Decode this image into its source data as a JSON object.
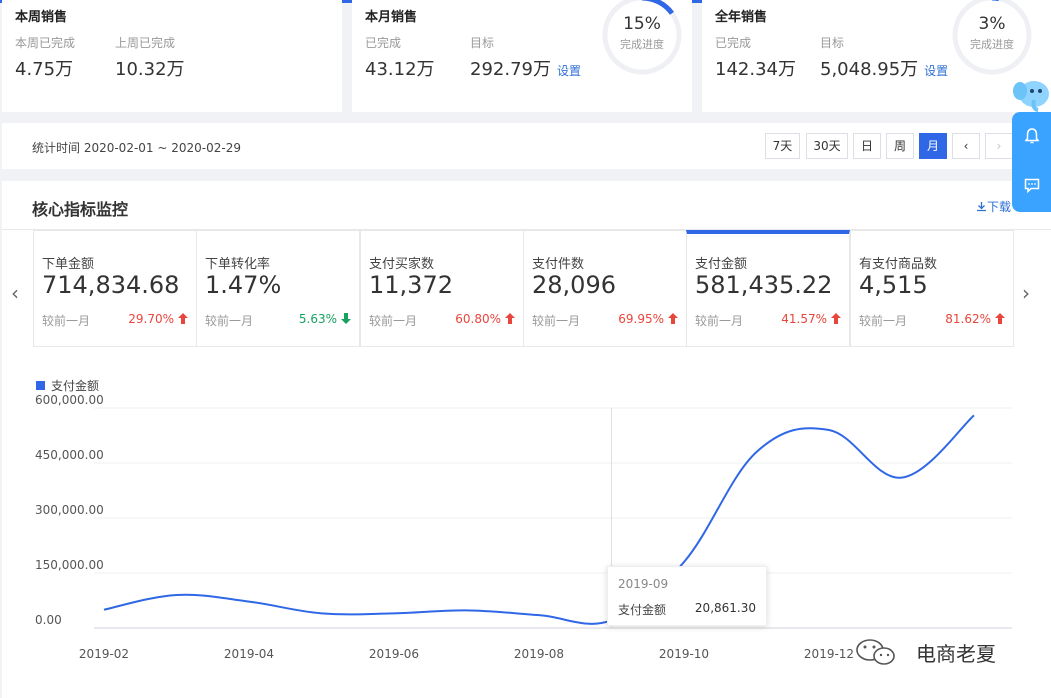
{
  "summary": {
    "week": {
      "title": "本周销售",
      "done_label": "本周已完成",
      "done_value": "4.75万",
      "last_label": "上周已完成",
      "last_value": "10.32万"
    },
    "month": {
      "title": "本月销售",
      "done_label": "已完成",
      "done_value": "43.12万",
      "target_label": "目标",
      "target_value": "292.79万",
      "set_link": "设置",
      "progress_pct": "15%",
      "progress_label": "完成进度",
      "progress_value": 0.15
    },
    "year": {
      "title": "全年销售",
      "done_label": "已完成",
      "done_value": "142.34万",
      "target_label": "目标",
      "target_value": "5,048.95万",
      "set_link": "设置",
      "progress_pct": "3%",
      "progress_label": "完成进度",
      "progress_value": 0.03
    }
  },
  "date_bar": {
    "stat_time": "统计时间 2020-02-01 ~ 2020-02-29",
    "buttons": [
      "7天",
      "30天",
      "日",
      "周",
      "月"
    ],
    "active": "月",
    "prev": "‹",
    "next": "›"
  },
  "core": {
    "title": "核心指标监控",
    "download": "下载",
    "compare_label": "较前一月",
    "prev_arrow": "‹",
    "next_arrow": "›",
    "kpis": [
      {
        "label": "下单金额",
        "value": "714,834.68",
        "change": "29.70%",
        "dir": "up"
      },
      {
        "label": "下单转化率",
        "value": "1.47%",
        "change": "5.63%",
        "dir": "down"
      },
      {
        "label": "支付买家数",
        "value": "11,372",
        "change": "60.80%",
        "dir": "up"
      },
      {
        "label": "支付件数",
        "value": "28,096",
        "change": "69.95%",
        "dir": "up"
      },
      {
        "label": "支付金额",
        "value": "581,435.22",
        "change": "41.57%",
        "dir": "up"
      },
      {
        "label": "有支付商品数",
        "value": "4,515",
        "change": "81.62%",
        "dir": "up"
      }
    ],
    "active_kpi": 4
  },
  "chart_data": {
    "type": "line",
    "legend": "支付金额",
    "color": "#2f67e6",
    "x": [
      "2019-02",
      "2019-03",
      "2019-04",
      "2019-05",
      "2019-06",
      "2019-07",
      "2019-08",
      "2019-09",
      "2019-10",
      "2019-11",
      "2019-12",
      "2020-01",
      "2020-02"
    ],
    "x_ticks": [
      "2019-02",
      "2019-04",
      "2019-06",
      "2019-08",
      "2019-10",
      "2019-12"
    ],
    "values": [
      50000,
      90000,
      72000,
      40000,
      40000,
      48000,
      35000,
      20861.3,
      180000,
      480000,
      540000,
      410000,
      580000
    ],
    "y_ticks": [
      "0.00",
      "150,000.00",
      "300,000.00",
      "450,000.00",
      "600,000.00"
    ],
    "ylim": [
      0,
      600000
    ],
    "highlight_index": 7
  },
  "tooltip": {
    "title": "2019-09",
    "name": "支付金额",
    "value": "20,861.30"
  },
  "watermark": "电商老夏",
  "colors": {
    "accent": "#2f67e6",
    "up": "#e8453c",
    "down": "#19a15f",
    "side": "#3aa3ff"
  }
}
